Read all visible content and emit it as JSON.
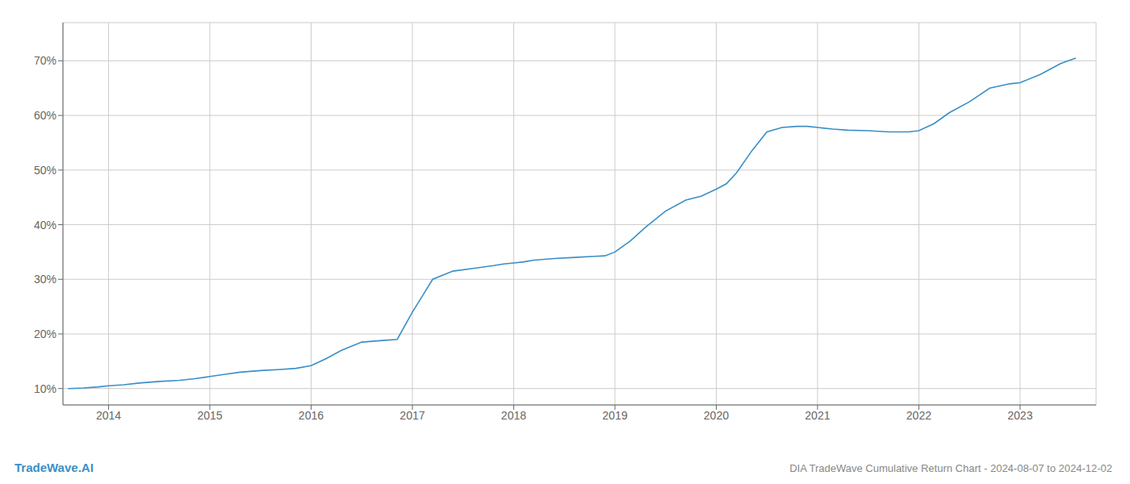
{
  "chart_data": {
    "type": "line",
    "title": "DIA TradeWave Cumulative Return Chart - 2024-08-07 to 2024-12-02",
    "annotations": [
      "TradeWave.AI"
    ],
    "color": "#3a8fc7",
    "grid": true,
    "x": [
      2013.6,
      2013.75,
      2013.9,
      2014.0,
      2014.15,
      2014.3,
      2014.5,
      2014.7,
      2014.85,
      2015.0,
      2015.15,
      2015.3,
      2015.5,
      2015.7,
      2015.85,
      2016.0,
      2016.15,
      2016.3,
      2016.5,
      2016.7,
      2016.85,
      2017.0,
      2017.1,
      2017.2,
      2017.4,
      2017.6,
      2017.8,
      2017.9,
      2018.0,
      2018.1,
      2018.2,
      2018.4,
      2018.6,
      2018.8,
      2018.9,
      2019.0,
      2019.15,
      2019.3,
      2019.5,
      2019.7,
      2019.85,
      2020.0,
      2020.1,
      2020.2,
      2020.35,
      2020.5,
      2020.65,
      2020.8,
      2020.9,
      2021.0,
      2021.15,
      2021.3,
      2021.5,
      2021.7,
      2021.9,
      2022.0,
      2022.15,
      2022.3,
      2022.5,
      2022.7,
      2022.9,
      2023.0,
      2023.2,
      2023.4,
      2023.55
    ],
    "values": [
      10.0,
      10.1,
      10.3,
      10.5,
      10.7,
      11.0,
      11.3,
      11.5,
      11.8,
      12.2,
      12.6,
      13.0,
      13.3,
      13.5,
      13.7,
      14.2,
      15.5,
      17.0,
      18.5,
      18.8,
      19.0,
      24.0,
      27.0,
      30.0,
      31.5,
      32.0,
      32.5,
      32.8,
      33.0,
      33.2,
      33.5,
      33.8,
      34.0,
      34.2,
      34.3,
      35.0,
      37.0,
      39.5,
      42.5,
      44.5,
      45.2,
      46.5,
      47.5,
      49.5,
      53.5,
      57.0,
      57.8,
      58.0,
      58.0,
      57.8,
      57.5,
      57.3,
      57.2,
      57.0,
      57.0,
      57.2,
      58.5,
      60.5,
      62.5,
      65.0,
      65.8,
      66.0,
      67.5,
      69.5,
      70.5
    ],
    "xlim": [
      2013.55,
      2023.75
    ],
    "xticks": [
      2014,
      2015,
      2016,
      2017,
      2018,
      2019,
      2020,
      2021,
      2022,
      2023
    ],
    "ylim": [
      7,
      77
    ],
    "yticks": [
      {
        "value": 10,
        "label": "10%"
      },
      {
        "value": 20,
        "label": "20%"
      },
      {
        "value": 30,
        "label": "30%"
      },
      {
        "value": 40,
        "label": "40%"
      },
      {
        "value": 50,
        "label": "50%"
      },
      {
        "value": 60,
        "label": "60%"
      },
      {
        "value": 70,
        "label": "70%"
      }
    ]
  }
}
